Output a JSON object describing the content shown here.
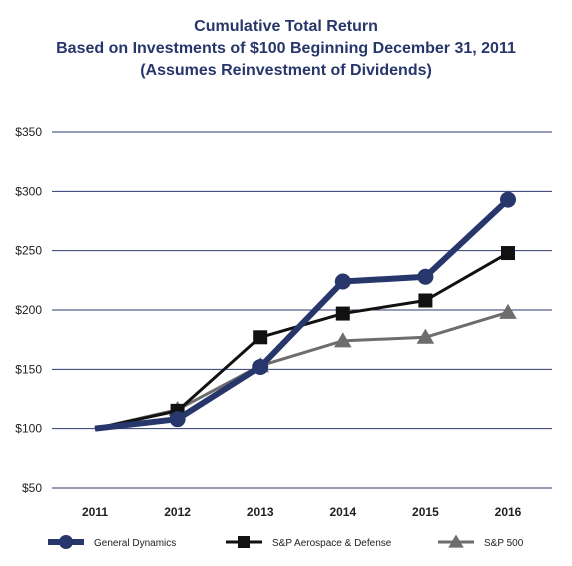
{
  "chart_data": {
    "type": "line",
    "title_lines": [
      "Cumulative Total Return",
      "Based on Investments of $100 Beginning December 31, 2011",
      "(Assumes Reinvestment of Dividends)"
    ],
    "categories": [
      "2011",
      "2012",
      "2013",
      "2014",
      "2015",
      "2016"
    ],
    "y_ticks": [
      "$50",
      "$100",
      "$150",
      "$200",
      "$250",
      "$300",
      "$350"
    ],
    "ylim": [
      50,
      350
    ],
    "grid": true,
    "legend_position": "bottom",
    "series": [
      {
        "name": "S&P 500",
        "marker": "triangle",
        "color": "#6d6d6d",
        "values": [
          100,
          116,
          153,
          174,
          177,
          198
        ]
      },
      {
        "name": "S&P Aerospace & Defense",
        "marker": "square",
        "color": "#111111",
        "values": [
          100,
          115,
          177,
          197,
          208,
          248
        ]
      },
      {
        "name": "General Dynamics",
        "marker": "circle",
        "color": "#27366b",
        "values": [
          100,
          108,
          152,
          224,
          228,
          293
        ]
      }
    ],
    "legend_order": [
      "General Dynamics",
      "S&P Aerospace & Defense",
      "S&P 500"
    ]
  }
}
